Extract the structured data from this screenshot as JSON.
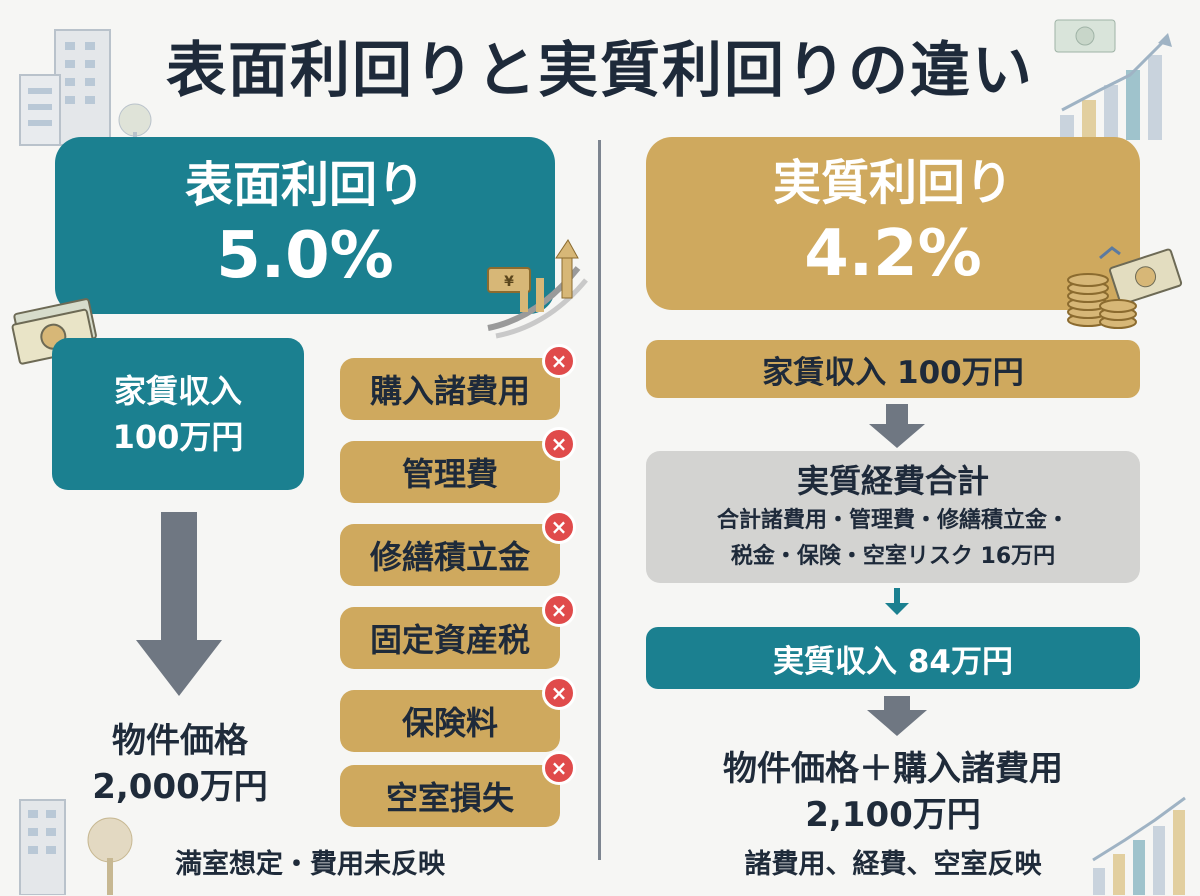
{
  "title": "表面利回りと実質利回りの違い",
  "left": {
    "heading": "表面利回り",
    "yield": "5.0%",
    "income_label": "家賃収入",
    "income_value": "100万円",
    "excluded_costs": [
      "購入諸費用",
      "管理費",
      "修繕積立金",
      "固定資産税",
      "保険料",
      "空室損失"
    ],
    "excluded_mark": "×",
    "price_label": "物件価格",
    "price_value": "2,000万円",
    "note": "満室想定・費用未反映"
  },
  "right": {
    "heading": "実質利回り",
    "yield": "4.2%",
    "income": "家賃収入 100万円",
    "expense_title": "実質経費合計",
    "expense_line1": "合計諸費用・管理費・修繕積立金・",
    "expense_line2": "税金・保険・空室リスク 16万円",
    "net_income": "実質収入 84万円",
    "price_label": "物件価格＋購入諸費用",
    "price_value": "2,100万円",
    "note": "諸費用、経費、空室反映"
  },
  "colors": {
    "teal": "#1b8090",
    "gold": "#cfa95e",
    "gray": "#d3d3d1",
    "navy": "#1e2a3a",
    "red": "#e04b4b"
  },
  "icons": [
    "building-icon",
    "cash-icon",
    "growth-chart-icon",
    "coins-icon",
    "bar-chart-icon",
    "tree-icon"
  ]
}
